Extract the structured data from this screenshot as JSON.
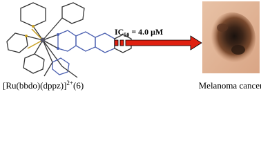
{
  "compound_label": {
    "formula": "[Ru(bbdo)(dppz)]",
    "charge": "2+",
    "number": "(6)"
  },
  "arrow_label": {
    "prefix": "IC",
    "subscript": "50",
    "suffix": " = 4.0 μM"
  },
  "image_caption": "Melanoma cancer"
}
